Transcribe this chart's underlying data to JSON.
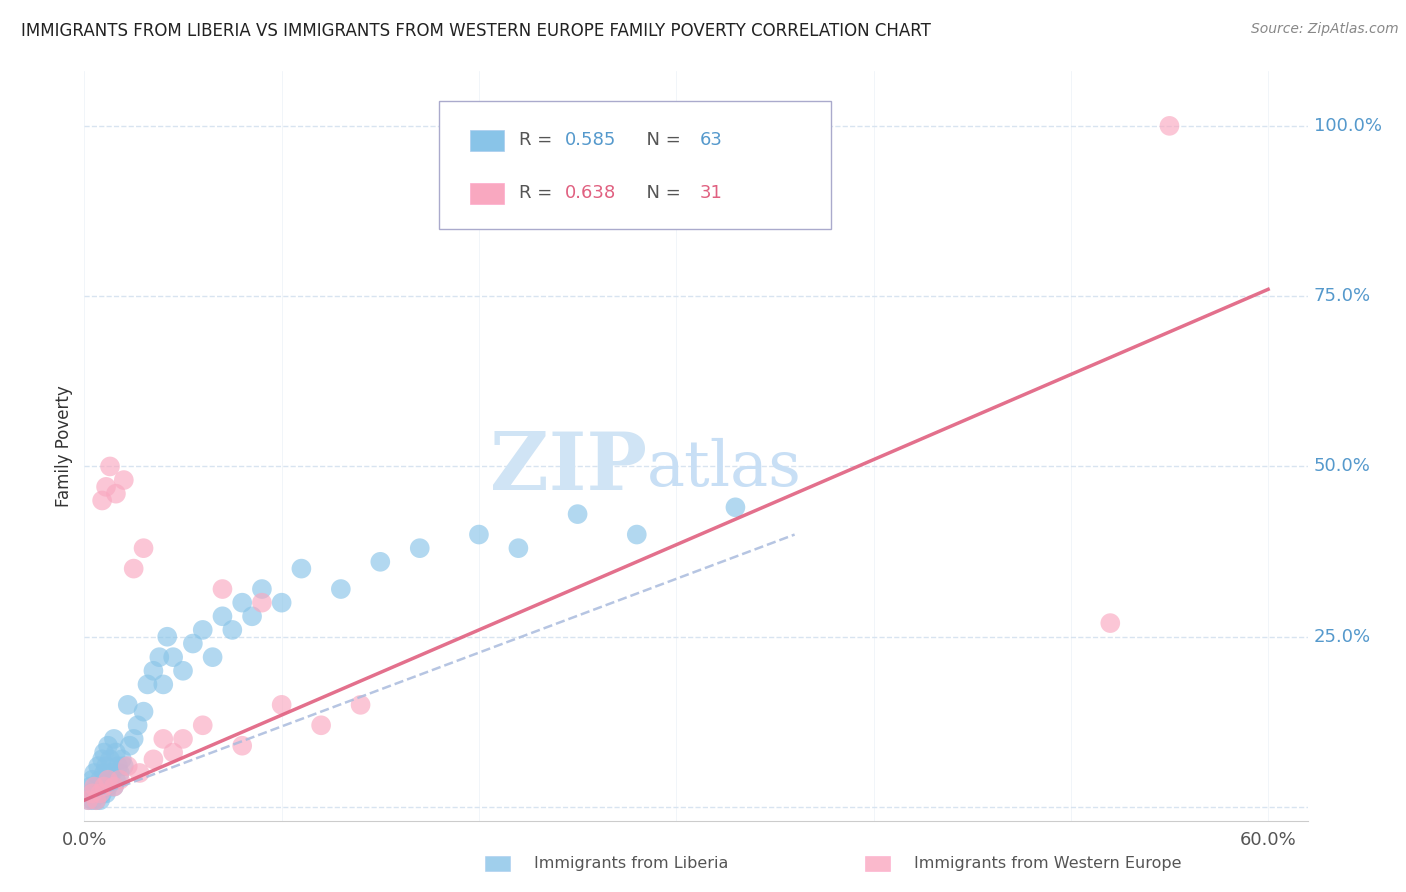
{
  "title": "IMMIGRANTS FROM LIBERIA VS IMMIGRANTS FROM WESTERN EUROPE FAMILY POVERTY CORRELATION CHART",
  "source": "Source: ZipAtlas.com",
  "ylabel": "Family Poverty",
  "xlim": [
    0.0,
    0.62
  ],
  "ylim": [
    -0.02,
    1.08
  ],
  "ytick_positions": [
    0.0,
    0.25,
    0.5,
    0.75,
    1.0
  ],
  "ytick_labels": [
    "",
    "25.0%",
    "50.0%",
    "75.0%",
    "100.0%"
  ],
  "liberia_R": 0.585,
  "liberia_N": 63,
  "western_europe_R": 0.638,
  "western_europe_N": 31,
  "liberia_color": "#89c4e8",
  "western_europe_color": "#f9a8c0",
  "liberia_trend_color": "#5599cc",
  "western_europe_trend_color": "#e06080",
  "liberia_trend_dash": true,
  "watermark_text": "ZIPatlas",
  "watermark_color": "#d0e4f5",
  "background_color": "#ffffff",
  "grid_color": "#d8e4f0",
  "axis_label_color": "#5599cc",
  "legend_label1_R": "0.585",
  "legend_label1_N": "63",
  "legend_label2_R": "0.638",
  "legend_label2_N": "31",
  "liberia_x": [
    0.002,
    0.003,
    0.003,
    0.004,
    0.004,
    0.005,
    0.005,
    0.006,
    0.006,
    0.007,
    0.007,
    0.008,
    0.008,
    0.009,
    0.009,
    0.01,
    0.01,
    0.01,
    0.011,
    0.011,
    0.012,
    0.012,
    0.013,
    0.013,
    0.014,
    0.015,
    0.015,
    0.016,
    0.016,
    0.017,
    0.018,
    0.019,
    0.02,
    0.022,
    0.023,
    0.025,
    0.027,
    0.03,
    0.032,
    0.035,
    0.038,
    0.04,
    0.042,
    0.045,
    0.05,
    0.055,
    0.06,
    0.065,
    0.07,
    0.075,
    0.08,
    0.085,
    0.09,
    0.1,
    0.11,
    0.13,
    0.15,
    0.17,
    0.2,
    0.22,
    0.25,
    0.28,
    0.33
  ],
  "liberia_y": [
    0.01,
    0.02,
    0.03,
    0.01,
    0.04,
    0.02,
    0.05,
    0.01,
    0.03,
    0.02,
    0.06,
    0.01,
    0.04,
    0.02,
    0.07,
    0.03,
    0.05,
    0.08,
    0.02,
    0.06,
    0.03,
    0.09,
    0.04,
    0.07,
    0.05,
    0.03,
    0.1,
    0.04,
    0.08,
    0.06,
    0.05,
    0.07,
    0.06,
    0.15,
    0.09,
    0.1,
    0.12,
    0.14,
    0.18,
    0.2,
    0.22,
    0.18,
    0.25,
    0.22,
    0.2,
    0.24,
    0.26,
    0.22,
    0.28,
    0.26,
    0.3,
    0.28,
    0.32,
    0.3,
    0.35,
    0.32,
    0.36,
    0.38,
    0.4,
    0.38,
    0.43,
    0.4,
    0.44
  ],
  "western_europe_x": [
    0.002,
    0.004,
    0.005,
    0.006,
    0.008,
    0.009,
    0.01,
    0.011,
    0.012,
    0.013,
    0.015,
    0.016,
    0.018,
    0.02,
    0.022,
    0.025,
    0.028,
    0.03,
    0.035,
    0.04,
    0.045,
    0.05,
    0.06,
    0.07,
    0.08,
    0.09,
    0.1,
    0.12,
    0.14,
    0.52,
    0.55
  ],
  "western_europe_y": [
    0.01,
    0.02,
    0.03,
    0.01,
    0.02,
    0.45,
    0.03,
    0.47,
    0.04,
    0.5,
    0.03,
    0.46,
    0.04,
    0.48,
    0.06,
    0.35,
    0.05,
    0.38,
    0.07,
    0.1,
    0.08,
    0.1,
    0.12,
    0.32,
    0.09,
    0.3,
    0.15,
    0.12,
    0.15,
    0.27,
    1.0
  ],
  "liberia_trend_x0": 0.0,
  "liberia_trend_x1": 0.36,
  "liberia_trend_y0": 0.01,
  "liberia_trend_y1": 0.4,
  "western_europe_trend_x0": 0.0,
  "western_europe_trend_x1": 0.6,
  "western_europe_trend_y0": 0.01,
  "western_europe_trend_y1": 0.76
}
